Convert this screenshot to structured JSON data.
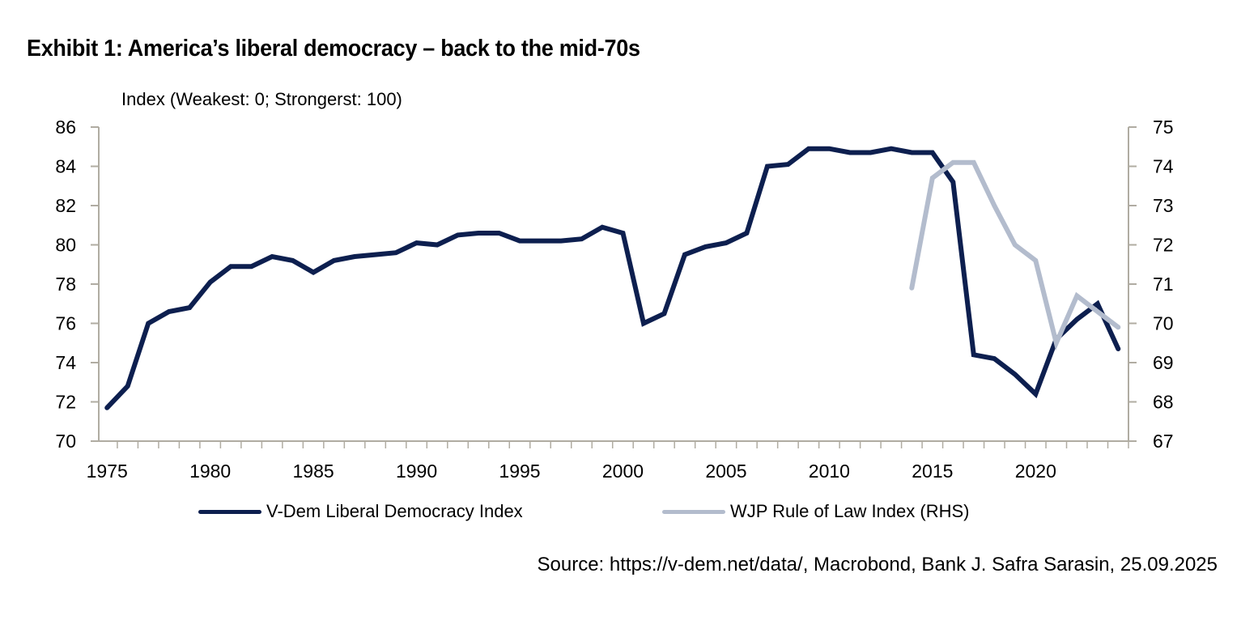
{
  "chart_data": {
    "type": "line",
    "title": "Exhibit 1: America’s liberal democracy – back to the mid-70s",
    "ylabel": "Index (Weakest: 0; Strongerst: 100)",
    "ylabel_right": "",
    "xlabel": "",
    "source": "Source: https://v-dem.net/data/, Macrobond, Bank J. Safra Sarasin, 25.09.2025",
    "x": [
      1975,
      1976,
      1977,
      1978,
      1979,
      1980,
      1981,
      1982,
      1983,
      1984,
      1985,
      1986,
      1987,
      1988,
      1989,
      1990,
      1991,
      1992,
      1993,
      1994,
      1995,
      1996,
      1997,
      1998,
      1999,
      2000,
      2001,
      2002,
      2003,
      2004,
      2005,
      2006,
      2007,
      2008,
      2009,
      2010,
      2011,
      2012,
      2013,
      2014,
      2015,
      2016,
      2017,
      2018,
      2019,
      2020,
      2021,
      2022,
      2023,
      2024
    ],
    "xlim": [
      1975,
      2024
    ],
    "xticks": [
      "1975",
      "1980",
      "1985",
      "1990",
      "1995",
      "2000",
      "2005",
      "2010",
      "2015",
      "2020"
    ],
    "ylim": [
      70,
      86
    ],
    "yticks": [
      "70",
      "72",
      "74",
      "76",
      "78",
      "80",
      "82",
      "84",
      "86"
    ],
    "ylim_right": [
      67,
      75
    ],
    "yticks_right": [
      "67",
      "68",
      "69",
      "70",
      "71",
      "72",
      "73",
      "74",
      "75"
    ],
    "grid": false,
    "legend_position": "bottom",
    "series": [
      {
        "name": "V-Dem Liberal Democracy Index",
        "axis": "left",
        "color": "#0d1f4f",
        "values": [
          71.7,
          72.8,
          76.0,
          76.6,
          76.8,
          78.1,
          78.9,
          78.9,
          79.4,
          79.2,
          78.6,
          79.2,
          79.4,
          79.5,
          79.6,
          80.1,
          80.0,
          80.5,
          80.6,
          80.6,
          80.2,
          80.2,
          80.2,
          80.3,
          80.9,
          80.6,
          76.0,
          76.5,
          79.5,
          79.9,
          80.1,
          80.6,
          84.0,
          84.1,
          84.9,
          84.9,
          84.7,
          84.7,
          84.9,
          84.7,
          84.7,
          83.2,
          74.4,
          74.2,
          73.4,
          72.4,
          75.2,
          76.2,
          77.0,
          74.7
        ]
      },
      {
        "name": "WJP Rule of Law Index (RHS)",
        "axis": "right",
        "color": "#b3bccd",
        "x": [
          2014,
          2015,
          2016,
          2017,
          2018,
          2019,
          2020,
          2021,
          2022,
          2023,
          2024
        ],
        "values": [
          70.9,
          73.7,
          74.1,
          74.1,
          73.0,
          72.0,
          71.6,
          69.5,
          70.7,
          70.3,
          69.9
        ]
      }
    ]
  }
}
